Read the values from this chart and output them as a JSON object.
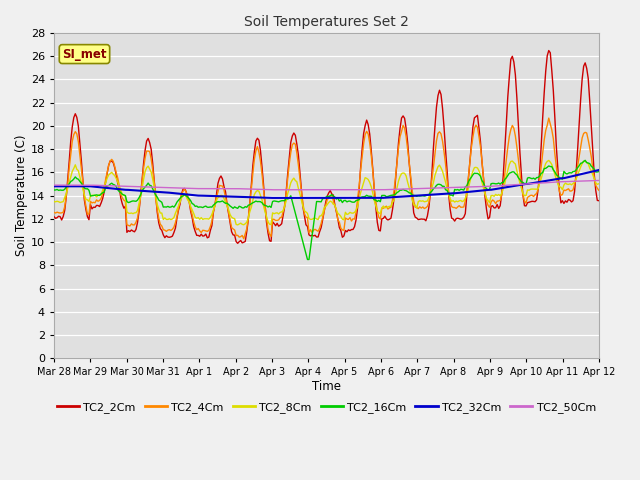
{
  "title": "Soil Temperatures Set 2",
  "xlabel": "Time",
  "ylabel": "Soil Temperature (C)",
  "ylim": [
    0,
    28
  ],
  "yticks": [
    0,
    2,
    4,
    6,
    8,
    10,
    12,
    14,
    16,
    18,
    20,
    22,
    24,
    26,
    28
  ],
  "annotation": "SI_met",
  "fig_bg_color": "#f0f0f0",
  "plot_bg_color": "#e0e0e0",
  "grid_color": "#ffffff",
  "series_colors": [
    "#cc0000",
    "#ff8800",
    "#dddd00",
    "#00cc00",
    "#0000cc",
    "#cc66cc"
  ],
  "series_labels": [
    "TC2_2Cm",
    "TC2_4Cm",
    "TC2_8Cm",
    "TC2_16Cm",
    "TC2_32Cm",
    "TC2_50Cm"
  ],
  "n_days": 15,
  "pts_per_day": 24,
  "xtick_labels": [
    "Mar 28",
    "Mar 29",
    "Mar 30",
    "Mar 31",
    "Apr 1",
    "Apr 2",
    "Apr 3",
    "Apr 4",
    "Apr 5",
    "Apr 6",
    "Apr 7",
    "Apr 8",
    "Apr 9",
    "Apr 10",
    "Apr 11",
    "Apr 12"
  ]
}
